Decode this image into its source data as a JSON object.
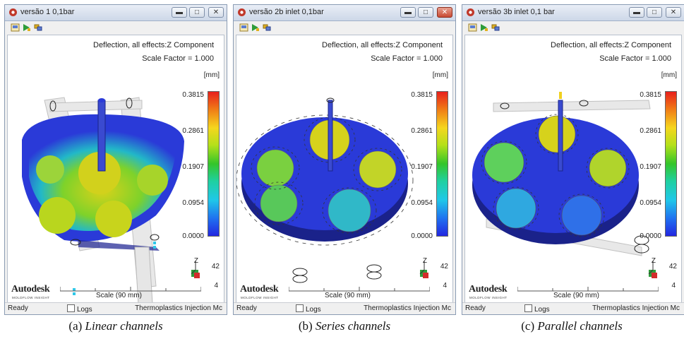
{
  "colors": {
    "accent_close": "#c84a33",
    "part_blue": "#2a3ad8",
    "cooling_channel": "#dcdcdc"
  },
  "windows": [
    {
      "title": "versão 1 0,1bar",
      "title_icon": "autodesk-moldflow-app-icon",
      "active": false,
      "result_title": "Deflection, all effects:Z Component",
      "scale_factor": "Scale Factor = 1.000",
      "unit": "[mm]",
      "ticks": [
        "0.3815",
        "0.2861",
        "0.1907",
        "0.0954",
        "0.0000"
      ],
      "triad_value": "42",
      "triad_axis": "Z",
      "triad_sub": "4",
      "logo": "Autodesk",
      "logo_sub": "MOLDFLOW INSIGHT",
      "scale_label": "Scale (90 mm)",
      "status_ready": "Ready",
      "status_logs": "Logs",
      "status_app": "Thermoplastics Injection Mc",
      "caption_prefix": "(a) ",
      "caption_text": "Linear channels"
    },
    {
      "title": "versão 2b inlet 0,1bar",
      "title_icon": "autodesk-moldflow-app-icon",
      "active": true,
      "result_title": "Deflection, all effects:Z Component",
      "scale_factor": "Scale Factor = 1.000",
      "unit": "[mm]",
      "ticks": [
        "0.3815",
        "0.2861",
        "0.1907",
        "0.0954",
        "0.0000"
      ],
      "triad_value": "42",
      "triad_axis": "Z",
      "triad_sub": "4",
      "logo": "Autodesk",
      "logo_sub": "MOLDFLOW INSIGHT",
      "scale_label": "Scale (90 mm)",
      "status_ready": "Ready",
      "status_logs": "Logs",
      "status_app": "Thermoplastics Injection Mc",
      "caption_prefix": "(b) ",
      "caption_text": "Series channels"
    },
    {
      "title": "versão 3b inlet 0,1 bar",
      "title_icon": "autodesk-moldflow-app-icon",
      "active": false,
      "result_title": "Deflection, all effects:Z Component",
      "scale_factor": "Scale Factor = 1.000",
      "unit": "[mm]",
      "ticks": [
        "0.3815",
        "0.2861",
        "0.1907",
        "0.0954",
        "0.0000"
      ],
      "triad_value": "42",
      "triad_axis": "Z",
      "triad_sub": "4",
      "logo": "Autodesk",
      "logo_sub": "MOLDFLOW INSIGHT",
      "scale_label": "Scale (90 mm)",
      "status_ready": "Ready",
      "status_logs": "Logs",
      "status_app": "Thermoplastics Injection Mc",
      "caption_prefix": "(c) ",
      "caption_text": "Parallel channels"
    }
  ]
}
